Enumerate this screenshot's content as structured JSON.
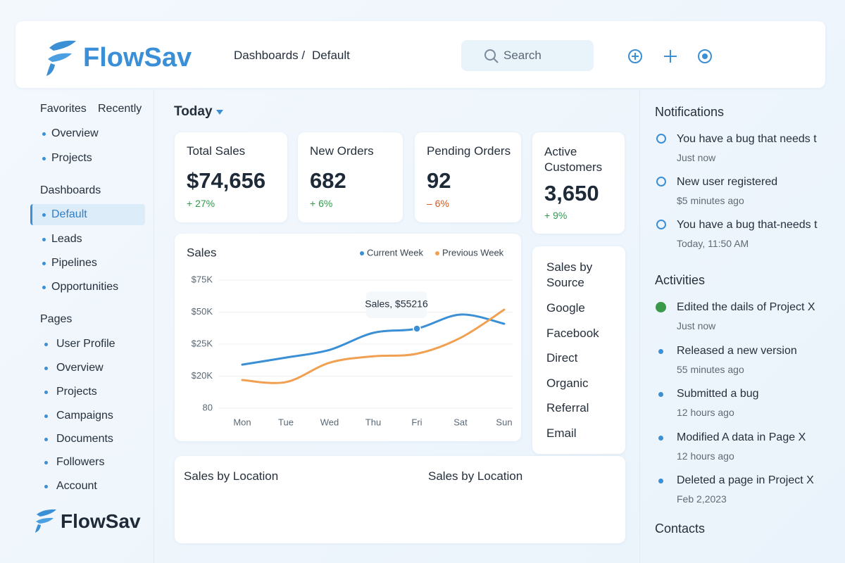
{
  "header": {
    "logo": "FlowSav",
    "breadcrumb": [
      "Dashboards /",
      "Default"
    ],
    "search": "Search"
  },
  "sidebar": {
    "tabs": [
      "Favorites",
      "Recently"
    ],
    "favorites": [
      "Overview",
      "Projects"
    ],
    "dashboards": {
      "title": "Dashboards",
      "items": [
        "Default",
        "Leads",
        "Pipelines",
        "Opportunities"
      ]
    },
    "pages": {
      "title": "Pages",
      "items": [
        "User Profile",
        "Overview",
        "Projects",
        "Campaigns",
        "Documents",
        "Followers",
        "Account"
      ]
    },
    "footer_logo": "FlowSav"
  },
  "main": {
    "period": "Today",
    "stats": [
      {
        "label": "Total Sales",
        "value": "$74,656",
        "change": "+ 27%"
      },
      {
        "label": "New Orders",
        "value": "682",
        "change": "+ 6%"
      },
      {
        "label": "Pending Orders",
        "value": "92",
        "change": "– 6%"
      },
      {
        "label": "Active Customers",
        "value": "3,650",
        "change": "+ 9%"
      }
    ],
    "sources": {
      "title": "Sales by Source",
      "items": [
        "Google",
        "Facebook",
        "Direct",
        "Organic",
        "Referral",
        "Email"
      ]
    },
    "location_titles": [
      "Sales by Location",
      "Sales by Location"
    ]
  },
  "chart_data": {
    "type": "line",
    "title": "Sales",
    "categories": [
      "Mon",
      "Tue",
      "Wed",
      "Thu",
      "Fri",
      "Sat",
      "Sun"
    ],
    "series": [
      {
        "name": "Current Week",
        "color": "#3b8fd4",
        "values": [
          21800,
          22900,
          24100,
          33800,
          37100,
          48100,
          40900
        ]
      },
      {
        "name": "Previous Week",
        "color": "#f0a050",
        "values": [
          17600,
          16300,
          22100,
          23100,
          23500,
          29900,
          51900
        ]
      }
    ],
    "yticks": [
      {
        "value": 75000,
        "label": "$75K"
      },
      {
        "value": 50000,
        "label": "$50K"
      },
      {
        "value": 25000,
        "label": "$25K"
      },
      {
        "value": 20000,
        "label": "$20K"
      },
      80
    ],
    "annotation": "Sales, $55216",
    "grid": true
  },
  "notifications": {
    "title": "Notifications",
    "items": [
      {
        "text": "You have a bug that needs t",
        "time": "Just now"
      },
      {
        "text": "New user registered",
        "time": "$5 minutes ago"
      },
      {
        "text": "You have a bug that-needs t",
        "time": "Today, 11:50 AM"
      }
    ]
  },
  "activities": {
    "title": "Activities",
    "items": [
      {
        "text": "Edited the dails of Project X",
        "time": "Just now"
      },
      {
        "text": "Released a new version",
        "time": "55 minutes ago"
      },
      {
        "text": "Submitted a bug",
        "time": "12 hours ago"
      },
      {
        "text": "Modified A data in Page X",
        "time": "12 hours ago"
      },
      {
        "text": "Deleted a page in Project X",
        "time": "Feb 2,2023"
      }
    ]
  },
  "contacts": {
    "title": "Contacts"
  }
}
